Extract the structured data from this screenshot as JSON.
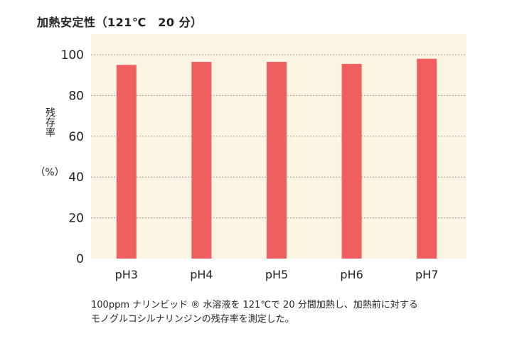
{
  "title": "加熱安定性（121℃　20 分）",
  "chart_data": {
    "type": "bar",
    "categories": [
      "pH3",
      "pH4",
      "pH5",
      "pH6",
      "pH7"
    ],
    "series": [
      {
        "values": [
          95,
          96.5,
          96.5,
          95.5,
          98
        ]
      }
    ],
    "ylabel": "残存率",
    "ylabel_unit": "（%）",
    "ylim": [
      0,
      100
    ],
    "yticks": [
      0,
      20,
      40,
      60,
      80,
      100
    ],
    "grid": true,
    "legend": "none",
    "colors": {
      "bar": "#ef5f5f",
      "plot_background": "#fdf5e4",
      "gridline": "#999999"
    }
  },
  "caption": {
    "line1": "100ppm ナリンビッド ® 水溶液を 121℃で 20 分間加熱し、加熱前に対する",
    "line2": "モノグルコシルナリンジンの残存率を測定した。"
  }
}
